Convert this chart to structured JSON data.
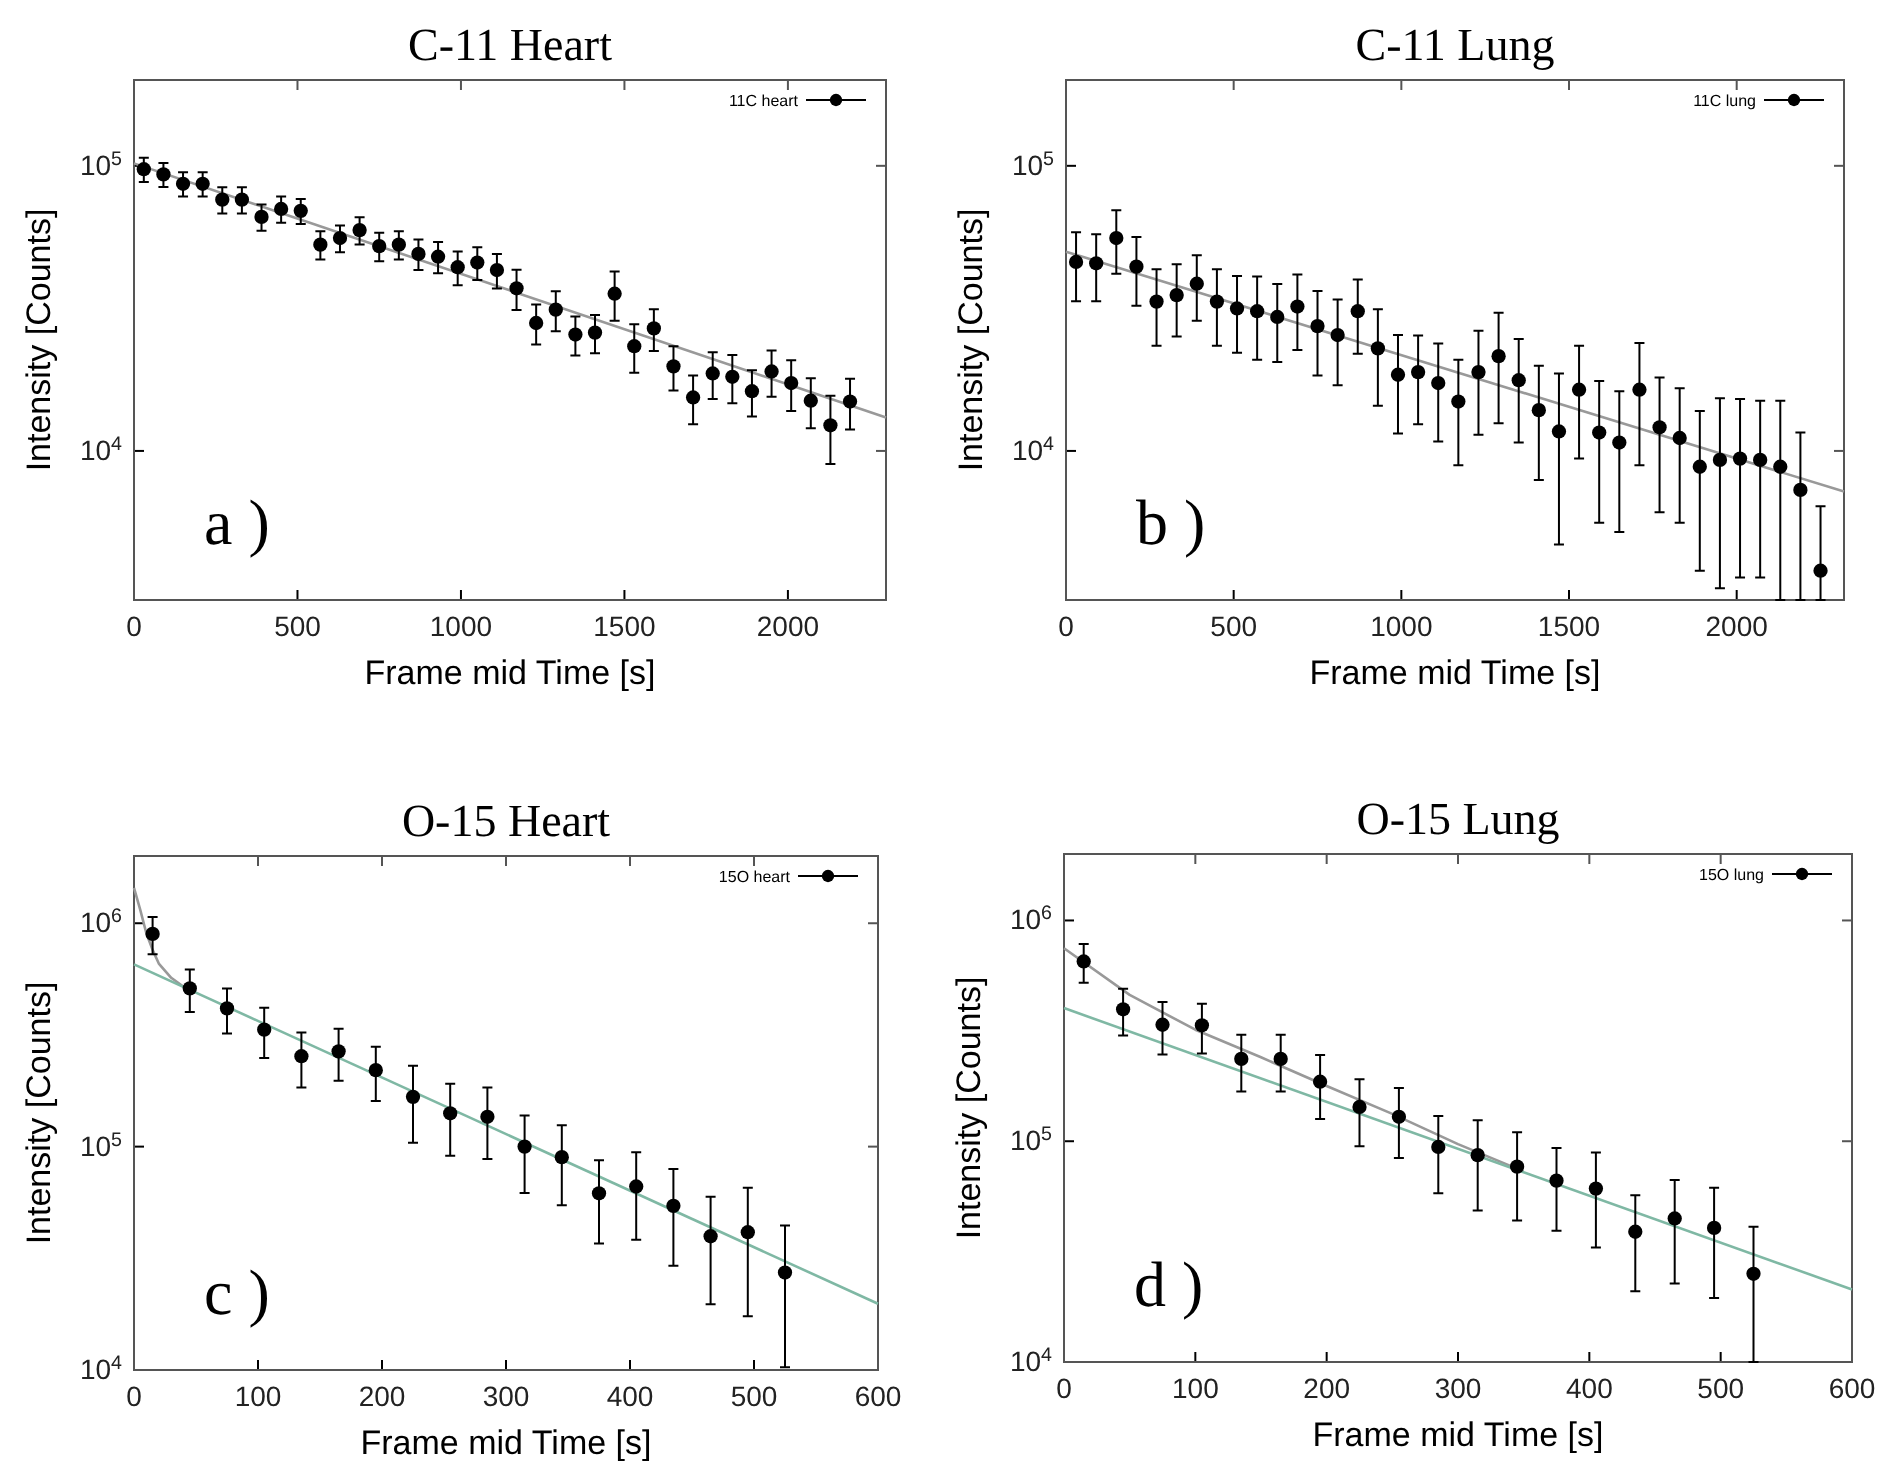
{
  "chart_data": [
    {
      "type": "scatter",
      "title": "C-11 Heart",
      "xlabel": "Frame mid Time [s]",
      "ylabel": "Intensity [Counts]",
      "xlim": [
        0,
        2300
      ],
      "ylim": [
        3000,
        200000
      ],
      "xticks": [
        0,
        500,
        1000,
        1500,
        2000
      ],
      "yticks": [
        {
          "value": 10000,
          "label": "10$^{4}$"
        },
        {
          "value": 100000,
          "label": "10$^{5}$"
        }
      ],
      "log": "y",
      "legend": "top right",
      "marker": "circle",
      "annotations": [
        "a )"
      ],
      "series": [
        {
          "name": "11C heart",
          "color": "#000000",
          "x": [
            30,
            90,
            150,
            210,
            270,
            330,
            390,
            450,
            510,
            570,
            630,
            690,
            750,
            810,
            870,
            930,
            990,
            1050,
            1110,
            1170,
            1230,
            1290,
            1350,
            1410,
            1470,
            1530,
            1590,
            1650,
            1710,
            1770,
            1830,
            1890,
            1950,
            2010,
            2070,
            2130,
            2190
          ],
          "values": [
            97300,
            93300,
            86500,
            86500,
            76100,
            76100,
            66200,
            70600,
            69500,
            52900,
            55800,
            59500,
            52300,
            52900,
            49100,
            48000,
            44100,
            45800,
            43100,
            37200,
            28100,
            31300,
            25600,
            26000,
            35600,
            23300,
            26900,
            19800,
            15400,
            18700,
            18200,
            16200,
            19000,
            17300,
            15000,
            12300,
            14900
          ],
          "errors": [
            9500,
            9000,
            8500,
            8500,
            8000,
            8000,
            7000,
            7500,
            7000,
            6000,
            6000,
            6500,
            6000,
            6000,
            6000,
            6000,
            6000,
            6000,
            6000,
            6000,
            4500,
            5000,
            4000,
            4000,
            7000,
            4500,
            4500,
            3500,
            3000,
            3500,
            3500,
            3000,
            3500,
            3500,
            3000,
            3300,
            3000
          ]
        },
        {
          "type": "line",
          "color": "#999999",
          "marker": "none",
          "x": [
            0,
            2300
          ],
          "values": [
            102000,
            13100
          ]
        }
      ]
    },
    {
      "type": "scatter",
      "title": "C-11 Lung",
      "xlabel": "Frame mid Time [s]",
      "ylabel": "Intensity [Counts]",
      "xlim": [
        0,
        2320
      ],
      "ylim": [
        3000,
        200000
      ],
      "xticks": [
        0,
        500,
        1000,
        1500,
        2000
      ],
      "yticks": [
        {
          "value": 10000,
          "label": "10$^{4}$"
        },
        {
          "value": 100000,
          "label": "10$^{5}$"
        }
      ],
      "log": "y",
      "legend": "top right",
      "marker": "circle",
      "annotations": [
        "b )"
      ],
      "series": [
        {
          "name": "11C lung",
          "color": "#000000",
          "x": [
            30,
            90,
            150,
            210,
            270,
            330,
            390,
            450,
            510,
            570,
            630,
            690,
            750,
            810,
            870,
            930,
            990,
            1050,
            1110,
            1170,
            1230,
            1290,
            1350,
            1410,
            1470,
            1530,
            1590,
            1650,
            1710,
            1770,
            1830,
            1890,
            1950,
            2010,
            2070,
            2130,
            2190,
            2250
          ],
          "values": [
            46000,
            45500,
            55800,
            44300,
            33400,
            35200,
            38600,
            33400,
            31600,
            30900,
            29500,
            32100,
            27400,
            25500,
            30900,
            22900,
            18500,
            18900,
            17300,
            14900,
            18900,
            21500,
            17700,
            13900,
            11700,
            16400,
            11600,
            10700,
            16400,
            12100,
            11100,
            8800,
            9300,
            9400,
            9300,
            8800,
            7300,
            3800
          ],
          "errors": [
            12500,
            12000,
            14000,
            12000,
            10000,
            10000,
            10000,
            10000,
            9500,
            10000,
            9000,
            9500,
            9000,
            8500,
            9000,
            8500,
            7000,
            6500,
            6500,
            6000,
            7500,
            9000,
            7000,
            6000,
            7000,
            7000,
            6000,
            5500,
            7500,
            6000,
            5500,
            5000,
            6000,
            5800,
            5700,
            [
              3000,
              15000
            ],
            [
              3000,
              11600
            ],
            [
              3000,
              6400
            ]
          ]
        },
        {
          "type": "line",
          "color": "#999999",
          "marker": "none",
          "x": [
            0,
            2320
          ],
          "values": [
            50000,
            7200
          ]
        }
      ]
    },
    {
      "type": "scatter",
      "title": "O-15 Heart",
      "xlabel": "Frame mid Time [s]",
      "ylabel": "Intensity [Counts]",
      "xlim": [
        0,
        600
      ],
      "ylim": [
        10000,
        2000000
      ],
      "xticks": [
        0,
        100,
        200,
        300,
        400,
        500,
        600
      ],
      "yticks": [
        {
          "value": 10000,
          "label": "10$^{4}$"
        },
        {
          "value": 100000,
          "label": "10$^{5}$"
        },
        {
          "value": 1000000,
          "label": "10$^{6}$"
        }
      ],
      "log": "y",
      "legend": "top right",
      "marker": "circle",
      "annotations": [
        "c )"
      ],
      "series": [
        {
          "name": "15O heart",
          "color": "#000000",
          "x": [
            15,
            45,
            75,
            105,
            135,
            165,
            195,
            225,
            255,
            285,
            315,
            345,
            375,
            405,
            435,
            465,
            495,
            525
          ],
          "values": [
            896000,
            511000,
            416000,
            334000,
            254000,
            267000,
            220000,
            167000,
            141000,
            136000,
            100000,
            89700,
            61800,
            66300,
            54300,
            39700,
            41400,
            27300
          ],
          "errors": [
            170000,
            110000,
            95000,
            85000,
            70000,
            70000,
            60000,
            63000,
            50000,
            48000,
            38000,
            35000,
            25000,
            28000,
            25000,
            20000,
            24000,
            17000
          ]
        },
        {
          "type": "line",
          "color": "#999999",
          "marker": "none",
          "x": [
            0,
            5,
            10,
            15,
            20,
            30,
            40
          ],
          "values": [
            1440000,
            1150000,
            900000,
            760000,
            660000,
            570000,
            520000
          ]
        },
        {
          "type": "line",
          "color": "#7fb8a4",
          "marker": "none",
          "x": [
            0,
            600
          ],
          "values": [
            654000,
            19800
          ]
        }
      ]
    },
    {
      "type": "scatter",
      "title": "O-15 Lung",
      "xlabel": "Frame mid Time [s]",
      "ylabel": "Intensity [Counts]",
      "xlim": [
        0,
        600
      ],
      "ylim": [
        10000,
        2000000
      ],
      "xticks": [
        0,
        100,
        200,
        300,
        400,
        500,
        600
      ],
      "yticks": [
        {
          "value": 10000,
          "label": "10$^{4}$"
        },
        {
          "value": 100000,
          "label": "10$^{5}$"
        },
        {
          "value": 1000000,
          "label": "10$^{6}$"
        }
      ],
      "log": "y",
      "legend": "top right",
      "marker": "circle",
      "annotations": [
        "d )"
      ],
      "series": [
        {
          "name": "15O lung",
          "color": "#000000",
          "x": [
            15,
            45,
            75,
            105,
            135,
            165,
            195,
            225,
            255,
            285,
            315,
            345,
            375,
            405,
            435,
            465,
            495,
            525
          ],
          "values": [
            652000,
            396000,
            337000,
            335000,
            236000,
            236000,
            186000,
            143000,
            129000,
            94200,
            86500,
            76700,
            66300,
            61000,
            38900,
            44700,
            40500,
            25100
          ],
          "errors": [
            130000,
            95000,
            90000,
            85000,
            68000,
            68000,
            60000,
            48000,
            45000,
            36000,
            38000,
            33000,
            27000,
            28000,
            18000,
            22000,
            21000,
            [
              10000,
              41000
            ]
          ]
        },
        {
          "type": "line",
          "color": "#999999",
          "marker": "none",
          "x": [
            0,
            50,
            100,
            150,
            200,
            250,
            300,
            350
          ],
          "values": [
            748000,
            460000,
            320000,
            240000,
            178000,
            133000,
            97000,
            73000
          ]
        },
        {
          "type": "line",
          "color": "#7fb8a4",
          "marker": "none",
          "x": [
            0,
            600
          ],
          "values": [
            401000,
            21300
          ]
        }
      ]
    }
  ]
}
